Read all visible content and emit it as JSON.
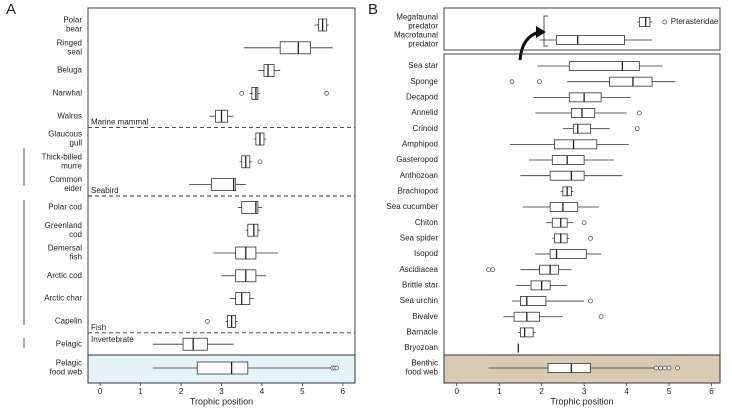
{
  "chart_data": [
    {
      "type": "box",
      "panel": "A",
      "xlabel": "Trophic position",
      "xlim": [
        -0.3,
        6.3
      ],
      "xticks": [
        0,
        1,
        2,
        3,
        4,
        5,
        6
      ],
      "sections": [
        {
          "name": "Marine mammal",
          "rows": [
            {
              "label": [
                "Polar",
                "bear"
              ],
              "min": 5.3,
              "q1": 5.4,
              "median": 5.5,
              "q3": 5.6,
              "max": 5.65,
              "outliers": []
            },
            {
              "label": [
                "Ringed",
                "seal"
              ],
              "min": 3.55,
              "q1": 4.45,
              "median": 4.9,
              "q3": 5.2,
              "max": 5.75,
              "outliers": []
            },
            {
              "label": [
                "Beluga"
              ],
              "min": 3.9,
              "q1": 4.05,
              "median": 4.15,
              "q3": 4.3,
              "max": 4.45,
              "outliers": []
            },
            {
              "label": [
                "Narwhal"
              ],
              "min": 3.7,
              "q1": 3.75,
              "median": 3.85,
              "q3": 3.9,
              "max": 3.95,
              "outliers": [
                3.5,
                5.6
              ]
            },
            {
              "label": [
                "Walrus"
              ],
              "min": 2.7,
              "q1": 2.85,
              "median": 3.0,
              "q3": 3.15,
              "max": 3.3,
              "outliers": []
            }
          ]
        },
        {
          "name": "Seabird",
          "rows": [
            {
              "label": [
                "Glaucous",
                "gull"
              ],
              "min": 3.8,
              "q1": 3.85,
              "median": 3.95,
              "q3": 4.05,
              "max": 4.1,
              "outliers": []
            },
            {
              "label": [
                "Thick-billed",
                "murre"
              ],
              "min": 3.45,
              "q1": 3.5,
              "median": 3.6,
              "q3": 3.7,
              "max": 3.75,
              "outliers": [
                3.95
              ]
            },
            {
              "label": [
                "Common",
                "eider"
              ],
              "min": 2.2,
              "q1": 2.75,
              "median": 3.3,
              "q3": 3.35,
              "max": 3.6,
              "outliers": []
            }
          ]
        },
        {
          "name": "Fish",
          "rows": [
            {
              "label": [
                "Polar cod"
              ],
              "min": 3.4,
              "q1": 3.5,
              "median": 3.85,
              "q3": 3.9,
              "max": 4.0,
              "outliers": []
            },
            {
              "label": [
                "Greenland",
                "cod"
              ],
              "min": 3.6,
              "q1": 3.65,
              "median": 3.8,
              "q3": 3.9,
              "max": 3.95,
              "outliers": []
            },
            {
              "label": [
                "Demersal",
                "fish"
              ],
              "min": 2.8,
              "q1": 3.35,
              "median": 3.6,
              "q3": 3.85,
              "max": 4.4,
              "outliers": []
            },
            {
              "label": [
                "Arctic cod"
              ],
              "min": 3.0,
              "q1": 3.35,
              "median": 3.6,
              "q3": 3.85,
              "max": 4.1,
              "outliers": []
            },
            {
              "label": [
                "Arctic char"
              ],
              "min": 3.2,
              "q1": 3.35,
              "median": 3.5,
              "q3": 3.7,
              "max": 3.8,
              "outliers": []
            },
            {
              "label": [
                "Capelin"
              ],
              "min": 3.1,
              "q1": 3.15,
              "median": 3.25,
              "q3": 3.35,
              "max": 3.4,
              "outliers": [
                2.65
              ]
            }
          ]
        },
        {
          "name": "Invertebrate",
          "rows": [
            {
              "label": [
                "Pelagic"
              ],
              "min": 1.3,
              "q1": 2.05,
              "median": 2.3,
              "q3": 2.65,
              "max": 3.3,
              "outliers": []
            }
          ]
        }
      ],
      "summary": {
        "fill": "#e3f3f8",
        "rows": [
          {
            "label": [
              "Pelagic",
              "food web"
            ],
            "min": 1.3,
            "q1": 2.4,
            "median": 3.25,
            "q3": 3.65,
            "max": 5.7,
            "outliers": [
              5.75,
              5.8,
              5.85
            ]
          }
        ]
      }
    },
    {
      "type": "box",
      "panel": "B",
      "xlabel": "Trophic position",
      "xlim": [
        -0.3,
        6.2
      ],
      "xticks": [
        0,
        1,
        2,
        3,
        4,
        5,
        6
      ],
      "sections": [
        {
          "annotation": "Pterasteridae",
          "rows": [
            {
              "label": [
                "Megafaunal",
                "predator"
              ],
              "min": 4.25,
              "q1": 4.3,
              "median": 4.45,
              "q3": 4.55,
              "max": 4.6,
              "outliers": [
                4.9
              ]
            },
            {
              "label": [
                "Macrofaunal",
                "predator"
              ],
              "min": 1.95,
              "q1": 2.35,
              "median": 2.85,
              "q3": 3.95,
              "max": 4.6,
              "outliers": []
            }
          ]
        },
        {
          "rows": [
            {
              "label": [
                "Sea star"
              ],
              "min": 1.9,
              "q1": 2.65,
              "median": 3.9,
              "q3": 4.3,
              "max": 4.85,
              "outliers": []
            },
            {
              "label": [
                "Sponge"
              ],
              "min": 2.6,
              "q1": 3.6,
              "median": 4.15,
              "q3": 4.6,
              "max": 5.15,
              "outliers": [
                1.3,
                1.95
              ]
            },
            {
              "label": [
                "Decapod"
              ],
              "min": 1.8,
              "q1": 2.65,
              "median": 3.0,
              "q3": 3.4,
              "max": 4.1,
              "outliers": []
            },
            {
              "label": [
                "Annelid"
              ],
              "min": 1.85,
              "q1": 2.7,
              "median": 2.95,
              "q3": 3.25,
              "max": 4.0,
              "outliers": [
                4.3
              ]
            },
            {
              "label": [
                "Crinoid"
              ],
              "min": 2.5,
              "q1": 2.75,
              "median": 2.85,
              "q3": 3.15,
              "max": 3.6,
              "outliers": [
                4.25
              ]
            },
            {
              "label": [
                "Amphipod"
              ],
              "min": 1.25,
              "q1": 2.3,
              "median": 2.75,
              "q3": 3.3,
              "max": 4.05,
              "outliers": []
            },
            {
              "label": [
                "Gasteropod"
              ],
              "min": 1.7,
              "q1": 2.25,
              "median": 2.6,
              "q3": 3.0,
              "max": 3.7,
              "outliers": []
            },
            {
              "label": [
                "Anthozoan"
              ],
              "min": 1.5,
              "q1": 2.2,
              "median": 2.7,
              "q3": 3.0,
              "max": 3.9,
              "outliers": []
            },
            {
              "label": [
                "Brachiopod"
              ],
              "min": 2.45,
              "q1": 2.5,
              "median": 2.6,
              "q3": 2.7,
              "max": 2.75,
              "outliers": []
            },
            {
              "label": [
                "Sea cucumber"
              ],
              "min": 1.55,
              "q1": 2.2,
              "median": 2.5,
              "q3": 2.85,
              "max": 3.35,
              "outliers": []
            },
            {
              "label": [
                "Chiton"
              ],
              "min": 2.1,
              "q1": 2.25,
              "median": 2.45,
              "q3": 2.6,
              "max": 2.75,
              "outliers": [
                3.0
              ]
            },
            {
              "label": [
                "Sea spider"
              ],
              "min": 2.25,
              "q1": 2.3,
              "median": 2.45,
              "q3": 2.6,
              "max": 2.65,
              "outliers": [
                3.15
              ]
            },
            {
              "label": [
                "Isopod"
              ],
              "min": 1.85,
              "q1": 2.2,
              "median": 2.35,
              "q3": 3.05,
              "max": 3.4,
              "outliers": []
            },
            {
              "label": [
                "Ascidiacea"
              ],
              "min": 1.5,
              "q1": 1.95,
              "median": 2.2,
              "q3": 2.4,
              "max": 2.7,
              "outliers": [
                0.75,
                0.85
              ]
            },
            {
              "label": [
                "Brittle star"
              ],
              "min": 1.4,
              "q1": 1.75,
              "median": 2.0,
              "q3": 2.2,
              "max": 2.6,
              "outliers": []
            },
            {
              "label": [
                "Sea urchin"
              ],
              "min": 1.3,
              "q1": 1.5,
              "median": 1.65,
              "q3": 2.1,
              "max": 3.0,
              "outliers": [
                3.15
              ]
            },
            {
              "label": [
                "Bivalve"
              ],
              "min": 1.1,
              "q1": 1.35,
              "median": 1.65,
              "q3": 1.95,
              "max": 2.5,
              "outliers": [
                3.4
              ]
            },
            {
              "label": [
                "Barnacle"
              ],
              "min": 1.45,
              "q1": 1.5,
              "median": 1.6,
              "q3": 1.8,
              "max": 1.85,
              "outliers": []
            },
            {
              "label": [
                "Bryozoan"
              ],
              "min": 1.45,
              "q1": 1.45,
              "median": 1.45,
              "q3": 1.45,
              "max": 1.45,
              "outliers": []
            }
          ]
        }
      ],
      "summary": {
        "fill": "#d9cbb3",
        "rows": [
          {
            "label": [
              "Benthic",
              "food web"
            ],
            "min": 0.75,
            "q1": 2.15,
            "median": 2.7,
            "q3": 3.15,
            "max": 4.65,
            "outliers": [
              4.7,
              4.8,
              4.9,
              5.0,
              5.2
            ]
          }
        ]
      }
    }
  ]
}
